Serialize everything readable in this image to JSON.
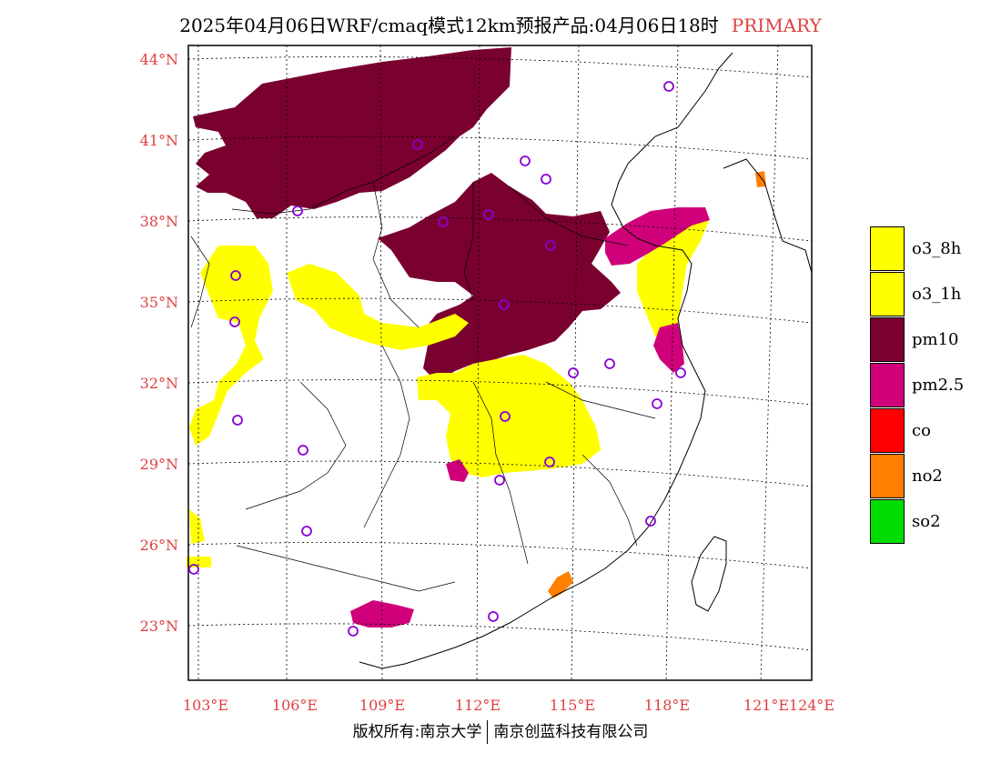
{
  "title": {
    "text": "2025年04月06日WRF/cmaq模式12km预报产品:04月06日18时",
    "primary": "PRIMARY"
  },
  "map": {
    "lat_labels": [
      "44°N",
      "41°N",
      "38°N",
      "35°N",
      "32°N",
      "29°N",
      "26°N",
      "23°N"
    ],
    "lon_labels": [
      "103°E",
      "106°E",
      "109°E",
      "112°E",
      "115°E",
      "118°E",
      "121°E",
      "124°E"
    ],
    "lat_values": [
      44,
      41,
      38,
      35,
      32,
      29,
      26,
      23
    ],
    "lon_values": [
      103,
      106,
      109,
      112,
      115,
      118,
      121,
      124
    ],
    "label_color": "#e04040",
    "station_color": "#8a00d4",
    "pollutant_colors": {
      "o3": "#ffff00",
      "pm10": "#7a0030",
      "pm25": "#d0007a",
      "co": "#ff0000",
      "no2": "#ff7f00",
      "so2": "#00dd00"
    }
  },
  "legend": [
    {
      "label": "o3_8h",
      "color": "#ffff00"
    },
    {
      "label": "o3_1h",
      "color": "#ffff00"
    },
    {
      "label": "pm10",
      "color": "#7a0030"
    },
    {
      "label": "pm2.5",
      "color": "#d0007a"
    },
    {
      "label": "co",
      "color": "#ff0000"
    },
    {
      "label": "no2",
      "color": "#ff7f00"
    },
    {
      "label": "so2",
      "color": "#00dd00"
    }
  ],
  "footer": {
    "left": "版权所有:南京大学",
    "right": "南京创蓝科技有限公司"
  }
}
